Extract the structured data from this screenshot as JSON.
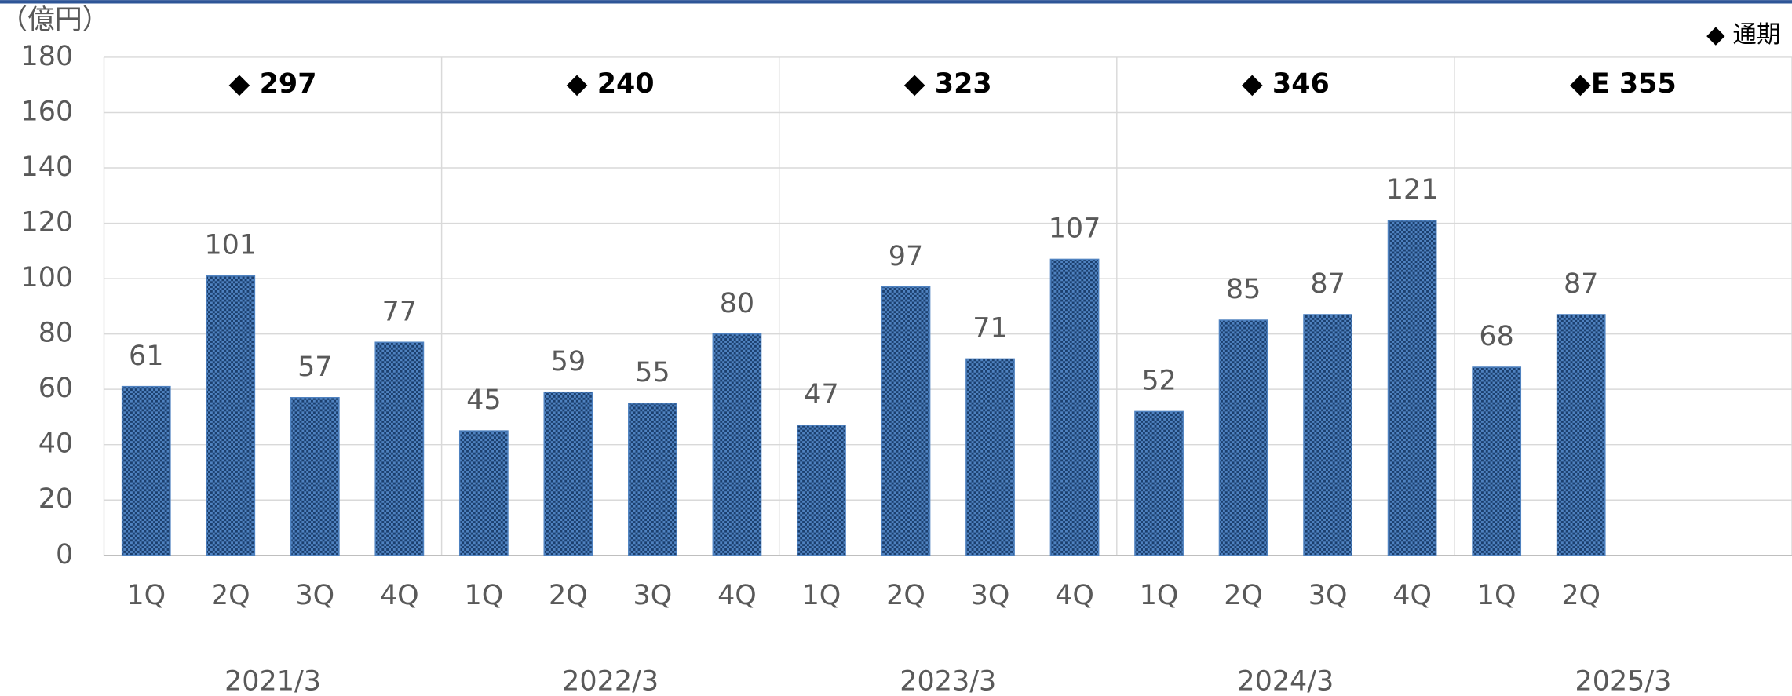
{
  "chart_data": {
    "type": "bar",
    "unit_label": "（億円）",
    "legend_label": "◆ 通期",
    "color": "#1f4e79",
    "ylim": [
      0,
      180
    ],
    "yticks": [
      0,
      20,
      40,
      60,
      80,
      100,
      120,
      140,
      160,
      180
    ],
    "grid": true,
    "groups": [
      {
        "name": "2021/3",
        "categories": [
          "1Q",
          "2Q",
          "3Q",
          "4Q"
        ],
        "values": [
          61,
          101,
          57,
          77
        ],
        "annual_total": 297,
        "annual_total_label": "◆ 297"
      },
      {
        "name": "2022/3",
        "categories": [
          "1Q",
          "2Q",
          "3Q",
          "4Q"
        ],
        "values": [
          45,
          59,
          55,
          80
        ],
        "annual_total": 240,
        "annual_total_label": "◆ 240"
      },
      {
        "name": "2023/3",
        "categories": [
          "1Q",
          "2Q",
          "3Q",
          "4Q"
        ],
        "values": [
          47,
          97,
          71,
          107
        ],
        "annual_total": 323,
        "annual_total_label": "◆ 323"
      },
      {
        "name": "2024/3",
        "categories": [
          "1Q",
          "2Q",
          "3Q",
          "4Q"
        ],
        "values": [
          52,
          85,
          87,
          121
        ],
        "annual_total": 346,
        "annual_total_label": "◆ 346"
      },
      {
        "name": "2025/3",
        "categories": [
          "1Q",
          "2Q"
        ],
        "values": [
          68,
          87
        ],
        "annual_total": 355,
        "annual_total_label": "◆E 355"
      }
    ]
  }
}
